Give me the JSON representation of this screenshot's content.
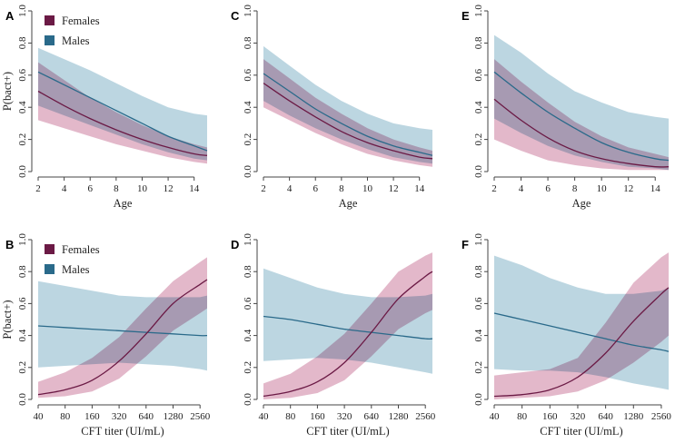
{
  "figure": {
    "colors": {
      "female_line": "#6b1a45",
      "male_line": "#2a6a8a",
      "female_band": "#d9a0b8",
      "male_band": "#a9cad8",
      "overlap_tint": "#7a7398",
      "axis": "#444444"
    }
  },
  "chart_data": [
    {
      "id": "A",
      "letter": "A",
      "type": "line",
      "xlabel": "Age",
      "ylabel": "P(bact+)",
      "x_scale": "linear",
      "xlim": [
        2,
        15
      ],
      "ylim": [
        0,
        1
      ],
      "x_ticks": [
        2,
        4,
        6,
        8,
        10,
        12,
        14
      ],
      "x_tick_labels": [
        "2",
        "4",
        "6",
        "8",
        "10",
        "12",
        "14"
      ],
      "y_ticks": [
        0,
        0.2,
        0.4,
        0.6,
        0.8,
        1
      ],
      "y_tick_labels": [
        "0.0",
        "0.2",
        "0.4",
        "0.6",
        "0.8",
        "1.0"
      ],
      "legend": {
        "entries": [
          "Females",
          "Males"
        ],
        "position": "top-left"
      },
      "x": [
        2,
        4,
        6,
        8,
        10,
        12,
        14,
        15
      ],
      "series": [
        {
          "name": "Females",
          "values": [
            0.5,
            0.41,
            0.33,
            0.26,
            0.2,
            0.15,
            0.11,
            0.1
          ],
          "lower": [
            0.32,
            0.27,
            0.22,
            0.17,
            0.13,
            0.09,
            0.06,
            0.05
          ],
          "upper": [
            0.68,
            0.57,
            0.46,
            0.37,
            0.29,
            0.22,
            0.17,
            0.15
          ]
        },
        {
          "name": "Males",
          "values": [
            0.62,
            0.54,
            0.46,
            0.38,
            0.3,
            0.22,
            0.16,
            0.13
          ],
          "lower": [
            0.41,
            0.35,
            0.29,
            0.23,
            0.17,
            0.12,
            0.08,
            0.07
          ],
          "upper": [
            0.77,
            0.7,
            0.63,
            0.55,
            0.47,
            0.4,
            0.36,
            0.35
          ]
        }
      ]
    },
    {
      "id": "C",
      "letter": "C",
      "type": "line",
      "xlabel": "Age",
      "ylabel": "",
      "x_scale": "linear",
      "xlim": [
        2,
        15
      ],
      "ylim": [
        0,
        1
      ],
      "x_ticks": [
        2,
        4,
        6,
        8,
        10,
        12,
        14
      ],
      "x_tick_labels": [
        "2",
        "4",
        "6",
        "8",
        "10",
        "12",
        "14"
      ],
      "y_ticks": [
        0,
        0.2,
        0.4,
        0.6,
        0.8,
        1
      ],
      "y_tick_labels": [
        "0.0",
        "0.2",
        "0.4",
        "0.6",
        "0.8",
        "1.0"
      ],
      "legend": null,
      "x": [
        2,
        4,
        6,
        8,
        10,
        12,
        14,
        15
      ],
      "series": [
        {
          "name": "Females",
          "values": [
            0.55,
            0.44,
            0.34,
            0.25,
            0.18,
            0.13,
            0.09,
            0.08
          ],
          "lower": [
            0.4,
            0.32,
            0.24,
            0.17,
            0.11,
            0.07,
            0.04,
            0.03
          ],
          "upper": [
            0.7,
            0.58,
            0.46,
            0.36,
            0.27,
            0.2,
            0.15,
            0.13
          ]
        },
        {
          "name": "Males",
          "values": [
            0.61,
            0.5,
            0.39,
            0.3,
            0.22,
            0.16,
            0.12,
            0.1
          ],
          "lower": [
            0.44,
            0.35,
            0.27,
            0.2,
            0.14,
            0.09,
            0.06,
            0.05
          ],
          "upper": [
            0.78,
            0.66,
            0.54,
            0.44,
            0.36,
            0.3,
            0.27,
            0.26
          ]
        }
      ]
    },
    {
      "id": "E",
      "letter": "E",
      "type": "line",
      "xlabel": "Age",
      "ylabel": "",
      "x_scale": "linear",
      "xlim": [
        2,
        15
      ],
      "ylim": [
        0,
        1
      ],
      "x_ticks": [
        2,
        4,
        6,
        8,
        10,
        12,
        14
      ],
      "x_tick_labels": [
        "2",
        "4",
        "6",
        "8",
        "10",
        "12",
        "14"
      ],
      "y_ticks": [
        0,
        0.2,
        0.4,
        0.6,
        0.8,
        1
      ],
      "y_tick_labels": [
        "0.0",
        "0.2",
        "0.4",
        "0.6",
        "0.8",
        "1.0"
      ],
      "legend": null,
      "x": [
        2,
        4,
        6,
        8,
        10,
        12,
        14,
        15
      ],
      "series": [
        {
          "name": "Females",
          "values": [
            0.45,
            0.32,
            0.21,
            0.13,
            0.08,
            0.05,
            0.03,
            0.03
          ],
          "lower": [
            0.2,
            0.13,
            0.07,
            0.04,
            0.02,
            0.01,
            0.01,
            0.01
          ],
          "upper": [
            0.7,
            0.56,
            0.43,
            0.31,
            0.22,
            0.15,
            0.11,
            0.09
          ]
        },
        {
          "name": "Males",
          "values": [
            0.62,
            0.49,
            0.37,
            0.27,
            0.18,
            0.12,
            0.08,
            0.07
          ],
          "lower": [
            0.33,
            0.24,
            0.16,
            0.1,
            0.06,
            0.03,
            0.02,
            0.01
          ],
          "upper": [
            0.85,
            0.74,
            0.61,
            0.5,
            0.43,
            0.37,
            0.34,
            0.33
          ]
        }
      ]
    },
    {
      "id": "B",
      "letter": "B",
      "type": "line",
      "xlabel": "CFT titer (UI/mL)",
      "ylabel": "P(bact+)",
      "x_scale": "log2",
      "xlim": [
        40,
        3072
      ],
      "ylim": [
        0,
        1
      ],
      "x_ticks": [
        40,
        80,
        160,
        320,
        640,
        1280,
        2560
      ],
      "x_tick_labels": [
        "40",
        "80",
        "160",
        "320",
        "640",
        "1280",
        "2560"
      ],
      "y_ticks": [
        0,
        0.2,
        0.4,
        0.6,
        0.8,
        1
      ],
      "y_tick_labels": [
        "0.0",
        "0.2",
        "0.4",
        "0.6",
        "0.8",
        "1.0"
      ],
      "legend": {
        "entries": [
          "Females",
          "Males"
        ],
        "position": "top-left"
      },
      "x": [
        40,
        80,
        160,
        320,
        640,
        1280,
        2560,
        3072
      ],
      "series": [
        {
          "name": "Females",
          "values": [
            0.03,
            0.06,
            0.12,
            0.24,
            0.41,
            0.6,
            0.72,
            0.75
          ],
          "lower": [
            0.01,
            0.02,
            0.05,
            0.13,
            0.27,
            0.43,
            0.54,
            0.57
          ],
          "upper": [
            0.11,
            0.17,
            0.26,
            0.39,
            0.57,
            0.74,
            0.86,
            0.89
          ]
        },
        {
          "name": "Males",
          "values": [
            0.46,
            0.45,
            0.44,
            0.43,
            0.42,
            0.41,
            0.4,
            0.4
          ],
          "lower": [
            0.2,
            0.21,
            0.22,
            0.23,
            0.22,
            0.21,
            0.19,
            0.18
          ],
          "upper": [
            0.74,
            0.71,
            0.68,
            0.65,
            0.64,
            0.64,
            0.64,
            0.65
          ]
        }
      ]
    },
    {
      "id": "D",
      "letter": "D",
      "type": "line",
      "xlabel": "CFT titer (UI/mL)",
      "ylabel": "",
      "x_scale": "log2",
      "xlim": [
        40,
        3072
      ],
      "ylim": [
        0,
        1
      ],
      "x_ticks": [
        40,
        80,
        160,
        320,
        640,
        1280,
        2560
      ],
      "x_tick_labels": [
        "40",
        "80",
        "160",
        "320",
        "640",
        "1280",
        "2560"
      ],
      "y_ticks": [
        0,
        0.2,
        0.4,
        0.6,
        0.8,
        1
      ],
      "y_tick_labels": [
        "0.0",
        "0.2",
        "0.4",
        "0.6",
        "0.8",
        "1.0"
      ],
      "legend": null,
      "x": [
        40,
        80,
        160,
        320,
        640,
        1280,
        2560,
        3072
      ],
      "series": [
        {
          "name": "Females",
          "values": [
            0.02,
            0.05,
            0.11,
            0.23,
            0.42,
            0.63,
            0.77,
            0.8
          ],
          "lower": [
            0.0,
            0.01,
            0.04,
            0.12,
            0.27,
            0.44,
            0.54,
            0.56
          ],
          "upper": [
            0.1,
            0.16,
            0.27,
            0.41,
            0.6,
            0.8,
            0.9,
            0.92
          ]
        },
        {
          "name": "Males",
          "values": [
            0.52,
            0.5,
            0.47,
            0.44,
            0.42,
            0.4,
            0.38,
            0.38
          ],
          "lower": [
            0.24,
            0.25,
            0.26,
            0.25,
            0.23,
            0.2,
            0.17,
            0.16
          ],
          "upper": [
            0.82,
            0.76,
            0.7,
            0.66,
            0.64,
            0.64,
            0.65,
            0.66
          ]
        }
      ]
    },
    {
      "id": "F",
      "letter": "F",
      "type": "line",
      "xlabel": "CFT titer (UI/mL)",
      "ylabel": "",
      "x_scale": "log2",
      "xlim": [
        40,
        3072
      ],
      "ylim": [
        0,
        1
      ],
      "x_ticks": [
        40,
        80,
        160,
        320,
        640,
        1280,
        2560
      ],
      "x_tick_labels": [
        "40",
        "80",
        "160",
        "320",
        "640",
        "1280",
        "2560"
      ],
      "y_ticks": [
        0,
        0.2,
        0.4,
        0.6,
        0.8,
        1
      ],
      "y_tick_labels": [
        "0.0",
        "0.2",
        "0.4",
        "0.6",
        "0.8",
        "1.0"
      ],
      "legend": null,
      "x": [
        40,
        80,
        160,
        320,
        640,
        1280,
        2560,
        3072
      ],
      "series": [
        {
          "name": "Females",
          "values": [
            0.02,
            0.03,
            0.06,
            0.14,
            0.29,
            0.49,
            0.66,
            0.7
          ],
          "lower": [
            0.0,
            0.01,
            0.02,
            0.05,
            0.12,
            0.23,
            0.36,
            0.4
          ],
          "upper": [
            0.15,
            0.17,
            0.19,
            0.26,
            0.48,
            0.73,
            0.89,
            0.92
          ]
        },
        {
          "name": "Males",
          "values": [
            0.54,
            0.5,
            0.46,
            0.42,
            0.38,
            0.34,
            0.31,
            0.3
          ],
          "lower": [
            0.19,
            0.18,
            0.18,
            0.17,
            0.14,
            0.1,
            0.07,
            0.06
          ],
          "upper": [
            0.9,
            0.84,
            0.76,
            0.7,
            0.66,
            0.66,
            0.68,
            0.7
          ]
        }
      ]
    }
  ]
}
